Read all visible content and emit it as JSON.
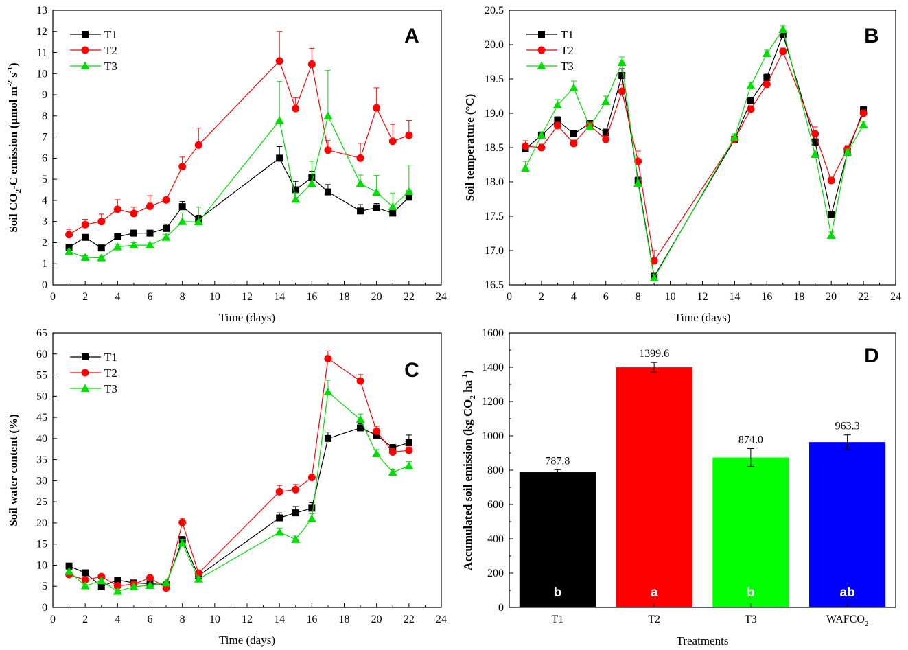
{
  "chart_data": [
    {
      "panel": "A",
      "type": "line",
      "xlabel": "Time (days)",
      "ylabel_pre": "Soil CO",
      "ylabel_sub": "2",
      "ylabel_mid": "-C emission (μmol m",
      "ylabel_sup1": "-2",
      "ylabel_mid2": " s",
      "ylabel_sup2": "-1",
      "ylabel_post": ")",
      "xlim": [
        0,
        24
      ],
      "xticks": [
        0,
        2,
        4,
        6,
        8,
        10,
        12,
        14,
        16,
        18,
        20,
        22,
        24
      ],
      "ylim": [
        0,
        13
      ],
      "yticks": [
        0,
        1,
        2,
        3,
        4,
        5,
        6,
        7,
        8,
        9,
        10,
        11,
        12,
        13
      ],
      "legend_position": "top-left",
      "x": [
        1,
        2,
        3,
        4,
        5,
        6,
        7,
        8,
        9,
        14,
        15,
        16,
        17,
        19,
        20,
        21,
        22
      ],
      "series": [
        {
          "name": "T1",
          "color": "#000000",
          "marker": "square",
          "values": [
            1.78,
            2.25,
            1.75,
            2.28,
            2.45,
            2.45,
            2.67,
            3.7,
            3.1,
            6.0,
            4.5,
            5.08,
            4.4,
            3.5,
            3.65,
            3.4,
            4.15
          ],
          "errors": [
            0.1,
            0.12,
            0.1,
            0.12,
            0.15,
            0.12,
            0.2,
            0.25,
            0.2,
            0.55,
            0.4,
            0.3,
            0.35,
            0.3,
            0.2,
            0.15,
            0.3
          ]
        },
        {
          "name": "T2",
          "color": "#ff0000",
          "marker": "circle",
          "values": [
            2.38,
            2.85,
            3.0,
            3.58,
            3.38,
            3.72,
            4.02,
            5.6,
            6.62,
            10.6,
            8.35,
            10.45,
            6.38,
            6.0,
            8.38,
            6.8,
            7.08
          ],
          "errors": [
            0.25,
            0.25,
            0.35,
            0.45,
            0.3,
            0.5,
            0.1,
            0.45,
            0.8,
            1.4,
            0.5,
            0.75,
            0.45,
            0.7,
            0.95,
            0.8,
            0.7
          ]
        },
        {
          "name": "T3",
          "color": "#00dd00",
          "marker": "triangle",
          "values": [
            1.58,
            1.3,
            1.28,
            1.8,
            1.88,
            1.88,
            2.25,
            3.0,
            2.98,
            7.78,
            4.05,
            4.8,
            8.0,
            4.8,
            4.38,
            3.7,
            4.42
          ],
          "errors": [
            0.1,
            0.08,
            0.08,
            0.12,
            0.12,
            0.1,
            0.15,
            0.4,
            0.7,
            1.85,
            0.3,
            1.05,
            2.15,
            0.4,
            0.8,
            0.65,
            1.25
          ]
        }
      ]
    },
    {
      "panel": "B",
      "type": "line",
      "xlabel": "Time (days)",
      "ylabel": "Soil temperature (°C)",
      "xlim": [
        0,
        24
      ],
      "xticks": [
        0,
        2,
        4,
        6,
        8,
        10,
        12,
        14,
        16,
        18,
        20,
        22,
        24
      ],
      "ylim": [
        16.5,
        20.5
      ],
      "yticks": [
        "16.5",
        "17.0",
        "17.5",
        "18.0",
        "18.5",
        "19.0",
        "19.5",
        "20.0",
        "20.5"
      ],
      "legend_position": "top-left",
      "x": [
        1,
        2,
        3,
        4,
        5,
        6,
        7,
        8,
        9,
        14,
        15,
        16,
        17,
        19,
        20,
        21,
        22
      ],
      "series": [
        {
          "name": "T1",
          "color": "#000000",
          "marker": "square",
          "values": [
            18.48,
            18.68,
            18.9,
            18.7,
            18.85,
            18.72,
            19.55,
            18.02,
            16.62,
            18.62,
            19.18,
            19.52,
            20.15,
            18.58,
            17.52,
            18.42,
            19.05
          ],
          "errors": [
            0.05,
            0.05,
            0.05,
            0.05,
            0.03,
            0.05,
            0.1,
            0.05,
            0.05,
            0.05,
            0.05,
            0.05,
            0.05,
            0.05,
            0.05,
            0.05,
            0.05
          ]
        },
        {
          "name": "T2",
          "color": "#ff0000",
          "marker": "circle",
          "values": [
            18.52,
            18.5,
            18.82,
            18.56,
            18.82,
            18.62,
            19.32,
            18.3,
            16.85,
            18.62,
            19.06,
            19.42,
            19.9,
            18.7,
            18.02,
            18.48,
            19.0
          ],
          "errors": [
            0.08,
            0.05,
            0.05,
            0.05,
            0.05,
            0.05,
            0.1,
            0.15,
            0.15,
            0.05,
            0.05,
            0.05,
            0.05,
            0.1,
            0.05,
            0.05,
            0.05
          ]
        },
        {
          "name": "T3",
          "color": "#00dd00",
          "marker": "triangle",
          "values": [
            18.2,
            18.68,
            19.12,
            19.37,
            18.8,
            19.17,
            19.74,
            17.98,
            16.6,
            18.65,
            19.4,
            19.87,
            20.22,
            18.4,
            17.22,
            18.43,
            18.83
          ],
          "errors": [
            0.1,
            0.05,
            0.08,
            0.1,
            0.05,
            0.08,
            0.08,
            0.05,
            0.05,
            0.05,
            0.05,
            0.05,
            0.05,
            0.05,
            0.05,
            0.05,
            0.05
          ]
        }
      ]
    },
    {
      "panel": "C",
      "type": "line",
      "xlabel": "Time (days)",
      "ylabel": "Soil water content (%)",
      "xlim": [
        0,
        24
      ],
      "xticks": [
        0,
        2,
        4,
        6,
        8,
        10,
        12,
        14,
        16,
        18,
        20,
        22,
        24
      ],
      "ylim": [
        0,
        65
      ],
      "yticks": [
        0,
        5,
        10,
        15,
        20,
        25,
        30,
        35,
        40,
        45,
        50,
        55,
        60,
        65
      ],
      "legend_position": "top-left",
      "x": [
        1,
        2,
        3,
        4,
        5,
        6,
        7,
        8,
        9,
        14,
        15,
        16,
        17,
        19,
        20,
        21,
        22
      ],
      "series": [
        {
          "name": "T1",
          "color": "#000000",
          "marker": "square",
          "values": [
            9.8,
            8.2,
            4.9,
            6.5,
            5.8,
            5.6,
            5.4,
            16.0,
            7.5,
            21.2,
            22.4,
            23.5,
            40.0,
            42.5,
            40.8,
            37.8,
            39.0
          ],
          "errors": [
            0.5,
            0.6,
            0.3,
            0.4,
            0.4,
            0.3,
            0.3,
            0.8,
            0.5,
            1.2,
            1.5,
            1.3,
            1.5,
            1.0,
            1.0,
            0.8,
            1.8
          ]
        },
        {
          "name": "T2",
          "color": "#ff0000",
          "marker": "circle",
          "values": [
            7.8,
            6.5,
            7.3,
            5.1,
            5.5,
            7.0,
            4.6,
            20.1,
            8.1,
            27.4,
            27.9,
            30.8,
            58.9,
            53.6,
            41.7,
            36.8,
            37.2
          ],
          "errors": [
            0.4,
            0.4,
            0.4,
            0.3,
            0.3,
            0.4,
            0.3,
            1.0,
            0.4,
            1.5,
            1.2,
            0.8,
            1.8,
            1.5,
            1.2,
            0.8,
            0.8
          ]
        },
        {
          "name": "T3",
          "color": "#00dd00",
          "marker": "triangle",
          "values": [
            8.5,
            5.1,
            6.3,
            3.8,
            4.9,
            5.2,
            5.8,
            15.2,
            6.7,
            17.8,
            16.1,
            21.0,
            51.0,
            44.5,
            36.4,
            32.0,
            33.5
          ],
          "errors": [
            0.4,
            0.3,
            0.4,
            0.3,
            0.3,
            0.3,
            0.3,
            0.8,
            0.4,
            1.0,
            0.8,
            1.2,
            2.8,
            1.3,
            1.0,
            0.6,
            1.0
          ]
        }
      ]
    },
    {
      "panel": "D",
      "type": "bar",
      "xlabel": "Treatments",
      "ylabel_pre": "Accumulated soil emission (kg CO",
      "ylabel_sub": "2",
      "ylabel_mid": " ha",
      "ylabel_sup": "-1",
      "ylabel_post": ")",
      "ylim": [
        0,
        1600
      ],
      "yticks": [
        0,
        200,
        400,
        600,
        800,
        1000,
        1200,
        1400,
        1600
      ],
      "categories": [
        "T1",
        "T2",
        "T3",
        "WAFCO2"
      ],
      "category_labels": [
        {
          "main": "T1",
          "sub": ""
        },
        {
          "main": "T2",
          "sub": ""
        },
        {
          "main": "T3",
          "sub": ""
        },
        {
          "main": "WAFCO",
          "sub": "2"
        }
      ],
      "values": [
        787.8,
        1399.6,
        874.0,
        963.3
      ],
      "value_labels": [
        "787.8",
        "1399.6",
        "874.0",
        "963.3"
      ],
      "errors": [
        15,
        28,
        52,
        42
      ],
      "letters": [
        "b",
        "a",
        "b",
        "ab"
      ],
      "colors": [
        "#000000",
        "#ff0000",
        "#00ff00",
        "#0000ff"
      ]
    }
  ]
}
